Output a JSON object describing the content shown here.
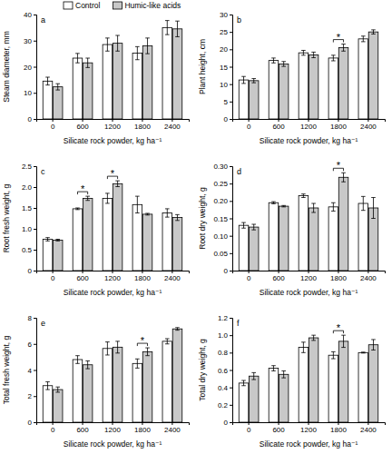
{
  "chart_data": [
    {
      "type": "bar",
      "title": "a",
      "x_label": "Silicate rock powder, kg ha⁻¹",
      "y_label": "Steam diameter, mm",
      "categories": [
        "0",
        "600",
        "1200",
        "1800",
        "2400"
      ],
      "series": [
        {
          "name": "Control",
          "color": "#ffffff",
          "values": [
            14.5,
            23.3,
            28.5,
            25.2,
            35
          ],
          "errors": [
            1.5,
            1.8,
            2.5,
            2.5,
            2.7
          ]
        },
        {
          "name": "Humic-like acids",
          "color": "#c8c8c8",
          "values": [
            12.3,
            21.5,
            29,
            28,
            34.5
          ],
          "errors": [
            1.2,
            1.8,
            3,
            3,
            3
          ]
        }
      ],
      "ylim": [
        0,
        40
      ],
      "yticks": [
        0,
        10,
        20,
        30,
        40
      ],
      "legend": "top"
    },
    {
      "type": "bar",
      "title": "b",
      "x_label": "Silicate rock powder, kg ha⁻¹",
      "y_label": "Plant height, cm",
      "categories": [
        "0",
        "600",
        "1200",
        "1800",
        "2400"
      ],
      "series": [
        {
          "color": "#ffffff",
          "values": [
            11.2,
            16.8,
            19,
            17.5,
            23
          ],
          "errors": [
            1,
            0.7,
            0.7,
            0.8,
            0.8
          ]
        },
        {
          "color": "#c8c8c8",
          "values": [
            11,
            15.8,
            18.4,
            20.5,
            25
          ],
          "errors": [
            0.6,
            0.7,
            0.8,
            1,
            0.6
          ]
        }
      ],
      "ylim": [
        0,
        30
      ],
      "yticks": [
        0,
        5,
        10,
        15,
        20,
        25,
        30
      ],
      "annotations": [
        {
          "text": "*",
          "category": "1800"
        }
      ]
    },
    {
      "type": "bar",
      "title": "c",
      "x_label": "Silicate rock powder, kg ha⁻¹",
      "y_label": "Root fresh weight, g",
      "categories": [
        "0",
        "600",
        "1200",
        "1800",
        "2400"
      ],
      "series": [
        {
          "color": "#ffffff",
          "values": [
            0.75,
            1.48,
            1.73,
            1.58,
            1.38
          ],
          "errors": [
            0.04,
            0.02,
            0.12,
            0.2,
            0.1
          ]
        },
        {
          "color": "#c8c8c8",
          "values": [
            0.73,
            1.73,
            2.08,
            1.35,
            1.27
          ],
          "errors": [
            0.02,
            0.05,
            0.07,
            0.02,
            0.07
          ]
        }
      ],
      "ylim": [
        0,
        2.5
      ],
      "yticks": [
        0,
        0.5,
        {
          "value": 1,
          "label": "1.0"
        },
        1.5,
        {
          "value": 2,
          "label": "2.0"
        },
        2.5
      ],
      "annotations": [
        {
          "text": "*",
          "category": "600"
        },
        {
          "text": "*",
          "category": "1200"
        }
      ]
    },
    {
      "type": "bar",
      "title": "d",
      "x_label": "Silicate rock powder, kg ha⁻¹",
      "y_label": "Root dry weight, g",
      "categories": [
        "0",
        "600",
        "1200",
        "1800",
        "2400"
      ],
      "series": [
        {
          "color": "#ffffff",
          "values": [
            0.13,
            0.195,
            0.215,
            0.183,
            0.193
          ],
          "errors": [
            0.008,
            0.003,
            0.005,
            0.012,
            0.02
          ]
        },
        {
          "color": "#c8c8c8",
          "values": [
            0.125,
            0.185,
            0.18,
            0.268,
            0.18
          ],
          "errors": [
            0.008,
            0.002,
            0.013,
            0.013,
            0.03
          ]
        }
      ],
      "ylim": [
        0,
        0.3
      ],
      "yticks": [
        0,
        0.05,
        {
          "value": 0.1,
          "label": "0.10"
        },
        0.15,
        {
          "value": 0.2,
          "label": "0.20"
        },
        0.25,
        {
          "value": 0.3,
          "label": "0.30"
        }
      ],
      "annotations": [
        {
          "text": "*",
          "category": "1800"
        }
      ]
    },
    {
      "type": "bar",
      "title": "e",
      "x_label": "Silicate rock powder, kg ha⁻¹",
      "y_label": "Total fresh weight, g",
      "categories": [
        "0",
        "600",
        "1200",
        "1800",
        "2400"
      ],
      "series": [
        {
          "color": "#ffffff",
          "values": [
            2.8,
            4.8,
            5.65,
            4.5,
            6.2
          ],
          "errors": [
            0.3,
            0.3,
            0.5,
            0.35,
            0.2
          ]
        },
        {
          "color": "#c8c8c8",
          "values": [
            2.5,
            4.4,
            5.75,
            5.4,
            7.15
          ],
          "errors": [
            0.2,
            0.3,
            0.45,
            0.3,
            0.1
          ]
        }
      ],
      "ylim": [
        0,
        8
      ],
      "yticks": [
        0,
        2,
        4,
        6,
        8
      ],
      "annotations": [
        {
          "text": "*",
          "category": "1800"
        }
      ]
    },
    {
      "type": "bar",
      "title": "f",
      "x_label": "Silicate rock powder, kg ha⁻¹",
      "y_label": "Total dry weight, g",
      "categories": [
        "0",
        "600",
        "1200",
        "1800",
        "2400"
      ],
      "series": [
        {
          "color": "#ffffff",
          "values": [
            0.45,
            0.62,
            0.86,
            0.77,
            0.8
          ],
          "errors": [
            0.03,
            0.03,
            0.06,
            0.04,
            0.005
          ]
        },
        {
          "color": "#c8c8c8",
          "values": [
            0.53,
            0.55,
            0.97,
            0.93,
            0.89
          ],
          "errors": [
            0.04,
            0.04,
            0.03,
            0.07,
            0.06
          ]
        }
      ],
      "ylim": [
        0,
        1.2
      ],
      "yticks": [
        0,
        0.2,
        0.4,
        0.6,
        0.8,
        {
          "value": 1,
          "label": "1.0"
        },
        1.2
      ],
      "annotations": [
        {
          "text": "*",
          "category": "1800"
        }
      ]
    }
  ]
}
